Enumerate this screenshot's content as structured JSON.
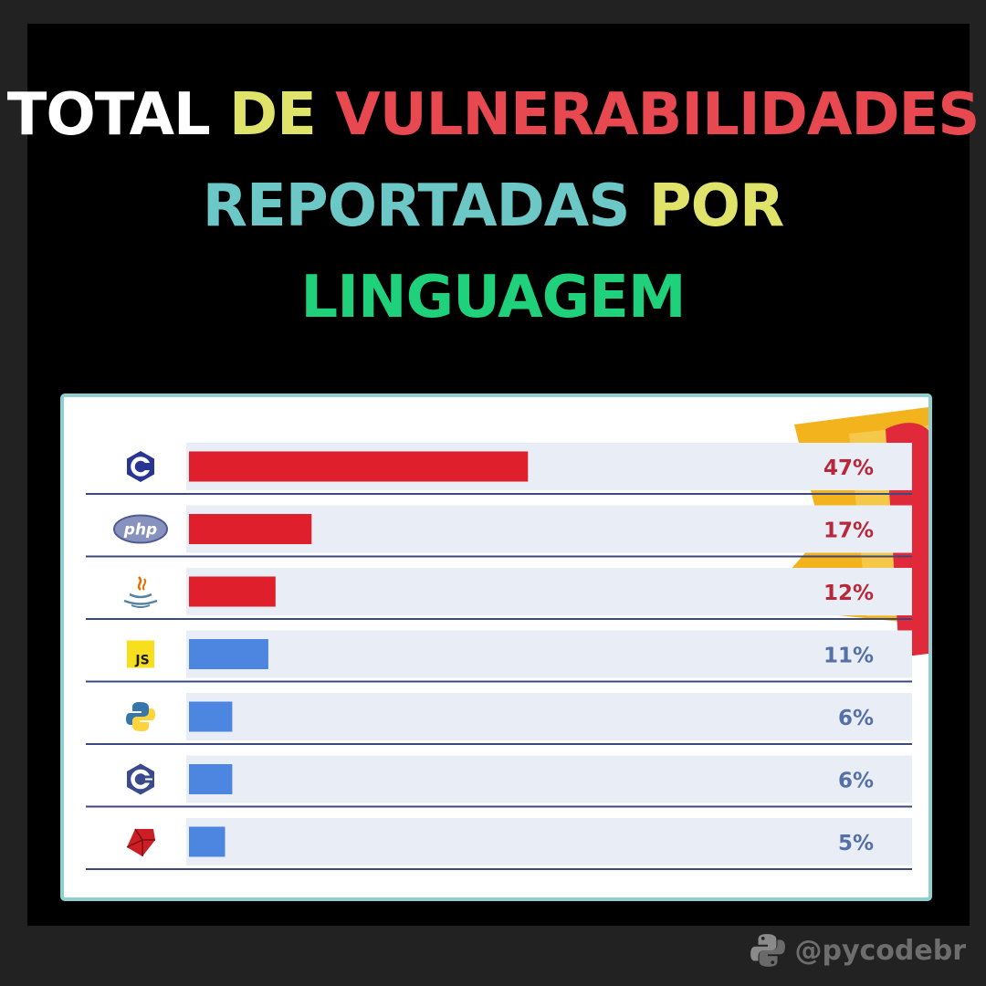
{
  "title": {
    "line1": [
      {
        "text": "TOTAL",
        "color": "#ffffff"
      },
      {
        "text": "DE",
        "color": "#dfe36a"
      },
      {
        "text": "VULNERABILIDADES",
        "color": "#e8484f"
      }
    ],
    "line2": [
      {
        "text": "REPORTADAS",
        "color": "#6cc8c6"
      },
      {
        "text": "POR",
        "color": "#dfe36a"
      }
    ],
    "line3": [
      {
        "text": "LINGUAGEM",
        "color": "#1fd17a"
      }
    ]
  },
  "chart_data": {
    "type": "bar",
    "orientation": "horizontal",
    "categories": [
      "C",
      "PHP",
      "Java",
      "JavaScript",
      "Python",
      "C++",
      "Ruby"
    ],
    "icons": [
      "c-logo-icon",
      "php-logo-icon",
      "java-logo-icon",
      "js-logo-icon",
      "python-logo-icon",
      "cpp-logo-icon",
      "ruby-logo-icon"
    ],
    "values": [
      47,
      17,
      12,
      11,
      6,
      6,
      5
    ],
    "value_labels": [
      "47%",
      "17%",
      "12%",
      "11%",
      "6%",
      "6%",
      "5%"
    ],
    "bar_colors": [
      "#e01f2d",
      "#e01f2d",
      "#e01f2d",
      "#4c86e0",
      "#4c86e0",
      "#4c86e0",
      "#4c86e0"
    ],
    "label_colors": [
      "#b8283a",
      "#b8283a",
      "#b8283a",
      "#5570a6",
      "#5570a6",
      "#5570a6",
      "#5570a6"
    ],
    "xlim": [
      0,
      100
    ]
  },
  "footer": {
    "handle": "@pycodebr"
  }
}
